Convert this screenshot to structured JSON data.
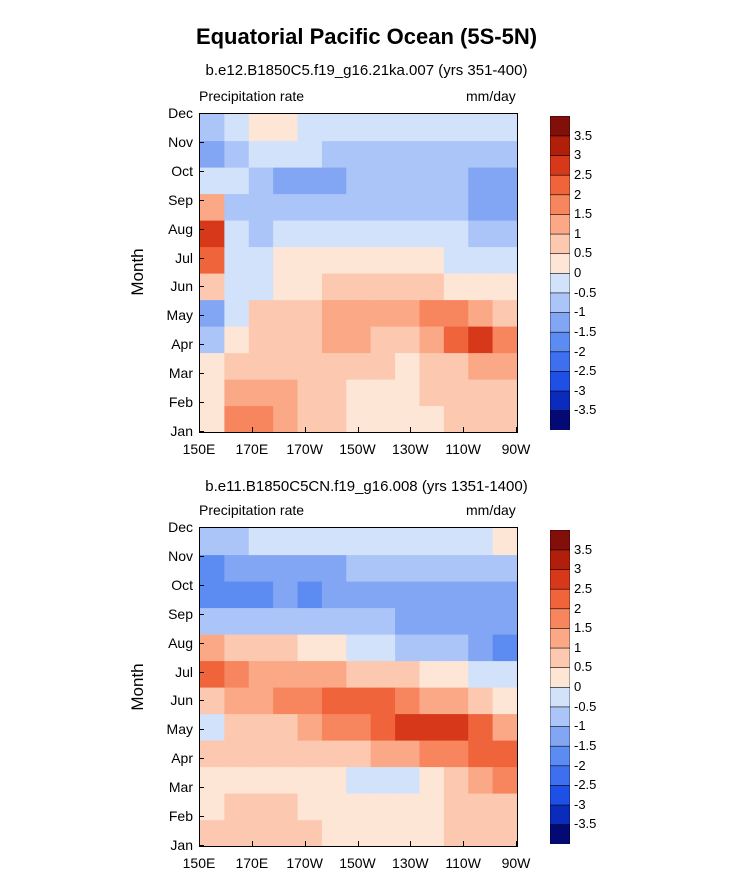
{
  "title": "Equatorial Pacific Ocean (5S-5N)",
  "panels": [
    {
      "subtitle": "b.e12.B1850C5.f19_g16.21ka.007 (yrs 351-400)",
      "left_label": "Precipitation rate",
      "right_label": "mm/day",
      "ylabel": "Month"
    },
    {
      "subtitle": "b.e11.B1850C5CN.f19_g16.008 (yrs 1351-1400)",
      "left_label": "Precipitation rate",
      "right_label": "mm/day",
      "ylabel": "Month"
    }
  ],
  "chart_data": [
    {
      "type": "heatmap",
      "subtitle": "b.e12.B1850C5.f19_g16.21ka.007 (yrs 351-400)",
      "variable": "Precipitation rate",
      "units": "mm/day",
      "ylabel": "Month",
      "x": [
        "150E",
        "160E",
        "170E",
        "180",
        "170W",
        "160W",
        "150W",
        "140W",
        "130W",
        "120W",
        "110W",
        "100W",
        "90W"
      ],
      "xticks": [
        "150E",
        "170E",
        "170W",
        "150W",
        "130W",
        "110W",
        "90W"
      ],
      "y": [
        "Jan",
        "Feb",
        "Mar",
        "Apr",
        "May",
        "Jun",
        "Jul",
        "Aug",
        "Sep",
        "Oct",
        "Nov",
        "Dec"
      ],
      "values": [
        [
          0.3,
          1.5,
          1.8,
          1.2,
          0.8,
          0.5,
          0.3,
          0.3,
          0.3,
          0.3,
          0.5,
          0.7,
          0.8
        ],
        [
          0.3,
          1.2,
          1.3,
          1.0,
          0.7,
          0.5,
          0.3,
          0.3,
          0.3,
          0.5,
          0.7,
          0.8,
          0.9
        ],
        [
          0.0,
          0.7,
          0.8,
          0.7,
          0.7,
          0.7,
          0.7,
          0.5,
          0.3,
          0.5,
          0.9,
          1.1,
          1.3
        ],
        [
          -0.7,
          0.3,
          0.7,
          0.8,
          0.9,
          1.0,
          1.0,
          0.9,
          0.9,
          1.1,
          2.0,
          2.7,
          1.5
        ],
        [
          -1.3,
          -0.3,
          0.5,
          0.7,
          0.8,
          1.0,
          1.2,
          1.2,
          1.3,
          1.6,
          1.5,
          1.0,
          0.5
        ],
        [
          0.7,
          -0.3,
          -0.3,
          0.3,
          0.4,
          0.5,
          0.6,
          0.6,
          0.6,
          0.5,
          0.4,
          0.3,
          0.0
        ],
        [
          2.0,
          -0.3,
          -0.5,
          0.2,
          0.2,
          0.2,
          0.2,
          0.2,
          0.1,
          0.0,
          -0.3,
          -0.5,
          -0.5
        ],
        [
          2.5,
          -0.3,
          -0.7,
          -0.5,
          -0.5,
          -0.5,
          -0.5,
          -0.5,
          -0.5,
          -0.5,
          -0.5,
          -0.7,
          -0.7
        ],
        [
          1.2,
          -0.6,
          -0.7,
          -0.8,
          -0.9,
          -0.9,
          -0.8,
          -0.7,
          -0.6,
          -0.6,
          -0.8,
          -1.2,
          -1.2
        ],
        [
          -0.5,
          -0.5,
          -0.7,
          -1.2,
          -1.3,
          -1.2,
          -0.9,
          -0.7,
          -0.6,
          -0.6,
          -0.8,
          -1.2,
          -1.2
        ],
        [
          -1.3,
          -0.7,
          -0.5,
          -0.5,
          -0.5,
          -0.6,
          -0.6,
          -0.6,
          -0.6,
          -0.6,
          -0.6,
          -0.7,
          -0.7
        ],
        [
          -0.7,
          -0.3,
          0.0,
          0.0,
          -0.3,
          -0.4,
          -0.4,
          -0.4,
          -0.4,
          -0.4,
          -0.4,
          -0.4,
          -0.4
        ]
      ],
      "colorbar": {
        "levels": [
          -3.5,
          -3,
          -2.5,
          -2,
          -1.5,
          -1,
          -0.5,
          0,
          0.5,
          1,
          1.5,
          2,
          2.5,
          3,
          3.5
        ],
        "labels": [
          "3.5",
          "3",
          "2.5",
          "2",
          "1.5",
          "1",
          "0.5",
          "0",
          "-0.5",
          "-1",
          "-1.5",
          "-2",
          "-2.5",
          "-3",
          "-3.5"
        ],
        "colors": [
          "#030a73",
          "#0b2bbd",
          "#1f50e6",
          "#3d6fef",
          "#5c8cf2",
          "#82a6f4",
          "#abc5f8",
          "#d2e2fb",
          "#fde6d6",
          "#fcc9b0",
          "#fba886",
          "#f7865f",
          "#f0643c",
          "#d7381a",
          "#b11e0a",
          "#830f0a"
        ]
      }
    },
    {
      "type": "heatmap",
      "subtitle": "b.e11.B1850C5CN.f19_g16.008 (yrs 1351-1400)",
      "variable": "Precipitation rate",
      "units": "mm/day",
      "ylabel": "Month",
      "x": [
        "150E",
        "160E",
        "170E",
        "180",
        "170W",
        "160W",
        "150W",
        "140W",
        "130W",
        "120W",
        "110W",
        "100W",
        "90W"
      ],
      "xticks": [
        "150E",
        "170E",
        "170W",
        "150W",
        "130W",
        "110W",
        "90W"
      ],
      "y": [
        "Jan",
        "Feb",
        "Mar",
        "Apr",
        "May",
        "Jun",
        "Jul",
        "Aug",
        "Sep",
        "Oct",
        "Nov",
        "Dec"
      ],
      "values": [
        [
          0.5,
          0.8,
          0.8,
          0.6,
          0.5,
          0.3,
          0.3,
          0.3,
          0.3,
          0.3,
          0.5,
          0.7,
          0.8
        ],
        [
          0.3,
          0.5,
          0.5,
          0.5,
          0.4,
          0.3,
          0.1,
          0.1,
          0.1,
          0.3,
          0.5,
          0.7,
          0.9
        ],
        [
          0.3,
          0.4,
          0.4,
          0.4,
          0.3,
          0.2,
          -0.2,
          -0.3,
          -0.3,
          0.2,
          0.7,
          1.2,
          1.7
        ],
        [
          0.5,
          0.5,
          0.5,
          0.6,
          0.7,
          0.8,
          0.9,
          1.0,
          1.3,
          1.6,
          1.9,
          2.2,
          2.3
        ],
        [
          -0.3,
          0.5,
          0.6,
          0.9,
          1.2,
          1.5,
          1.8,
          2.1,
          2.5,
          2.8,
          2.6,
          2.0,
          1.2
        ],
        [
          0.7,
          1.0,
          1.2,
          1.5,
          1.9,
          2.2,
          2.2,
          2.0,
          1.6,
          1.3,
          1.0,
          0.6,
          0.4
        ],
        [
          2.1,
          1.5,
          1.4,
          1.3,
          1.2,
          1.1,
          0.9,
          0.7,
          0.5,
          0.3,
          0.1,
          -0.3,
          -0.5
        ],
        [
          1.2,
          0.9,
          0.7,
          0.5,
          0.3,
          0.1,
          -0.2,
          -0.4,
          -0.6,
          -0.8,
          -1.0,
          -1.2,
          -1.8
        ],
        [
          -0.7,
          -0.7,
          -0.8,
          -0.9,
          -1.0,
          -1.0,
          -1.0,
          -1.0,
          -1.1,
          -1.1,
          -1.2,
          -1.2,
          -1.4
        ],
        [
          -1.7,
          -1.7,
          -1.6,
          -1.5,
          -1.7,
          -1.4,
          -1.2,
          -1.2,
          -1.2,
          -1.2,
          -1.2,
          -1.2,
          -1.2
        ],
        [
          -1.9,
          -1.4,
          -1.2,
          -1.2,
          -1.3,
          -1.1,
          -1.0,
          -1.0,
          -1.0,
          -1.0,
          -1.0,
          -0.9,
          -0.9
        ],
        [
          -0.8,
          -0.6,
          -0.5,
          -0.5,
          -0.5,
          -0.5,
          -0.5,
          -0.5,
          -0.5,
          -0.5,
          -0.3,
          -0.3,
          0.2
        ]
      ],
      "colorbar": {
        "levels": [
          -3.5,
          -3,
          -2.5,
          -2,
          -1.5,
          -1,
          -0.5,
          0,
          0.5,
          1,
          1.5,
          2,
          2.5,
          3,
          3.5
        ],
        "labels": [
          "3.5",
          "3",
          "2.5",
          "2",
          "1.5",
          "1",
          "0.5",
          "0",
          "-0.5",
          "-1",
          "-1.5",
          "-2",
          "-2.5",
          "-3",
          "-3.5"
        ],
        "colors": [
          "#030a73",
          "#0b2bbd",
          "#1f50e6",
          "#3d6fef",
          "#5c8cf2",
          "#82a6f4",
          "#abc5f8",
          "#d2e2fb",
          "#fde6d6",
          "#fcc9b0",
          "#fba886",
          "#f7865f",
          "#f0643c",
          "#d7381a",
          "#b11e0a",
          "#830f0a"
        ]
      }
    }
  ]
}
